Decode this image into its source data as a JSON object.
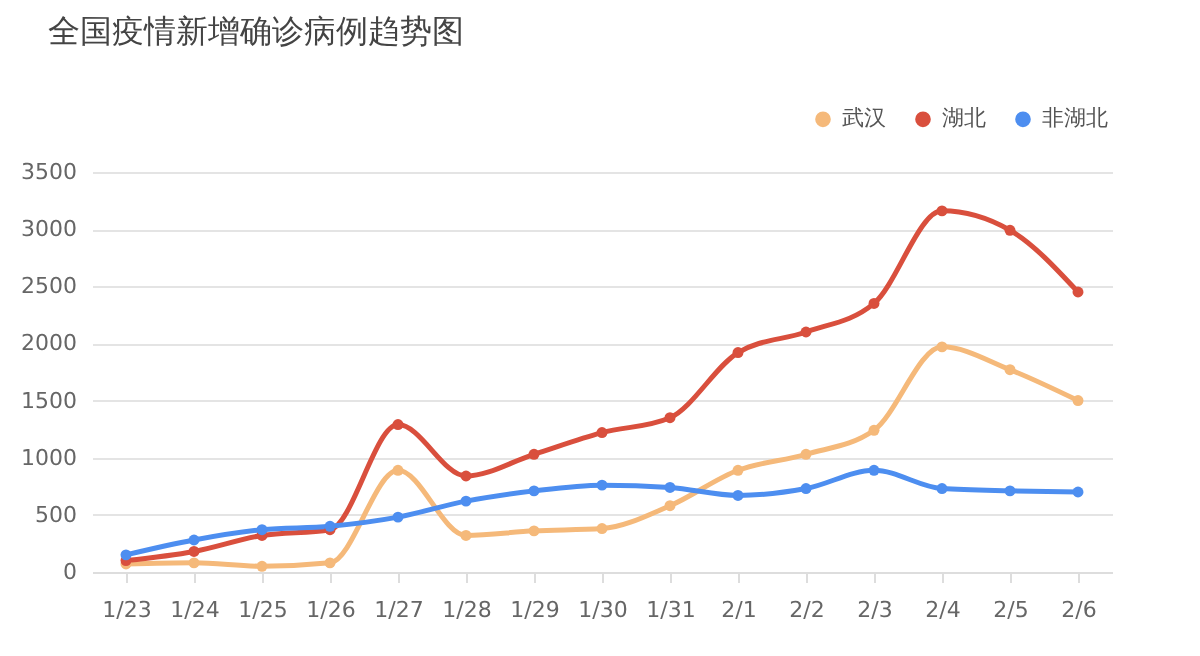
{
  "chart_data": {
    "type": "line",
    "title": "全国疫情新增确诊病例趋势图",
    "categories": [
      "1/23",
      "1/24",
      "1/25",
      "1/26",
      "1/27",
      "1/28",
      "1/29",
      "1/30",
      "1/31",
      "2/1",
      "2/2",
      "2/3",
      "2/4",
      "2/5",
      "2/6"
    ],
    "series": [
      {
        "name": "武汉",
        "color": "#f5b97a",
        "values": [
          70,
          80,
          50,
          80,
          890,
          320,
          360,
          380,
          580,
          890,
          1030,
          1240,
          1970,
          1770,
          1500
        ]
      },
      {
        "name": "湖北",
        "color": "#d94f3d",
        "values": [
          100,
          180,
          320,
          370,
          1290,
          840,
          1030,
          1220,
          1350,
          1920,
          2100,
          2350,
          3160,
          2990,
          2450
        ]
      },
      {
        "name": "非湖北",
        "color": "#4d8ef0",
        "values": [
          150,
          280,
          370,
          400,
          480,
          620,
          710,
          760,
          740,
          670,
          730,
          890,
          730,
          710,
          700
        ]
      }
    ],
    "ylim": [
      0,
      3500
    ],
    "yticks": [
      0,
      500,
      1000,
      1500,
      2000,
      2500,
      3000,
      3500
    ],
    "grid": "y",
    "legend": "top right",
    "marker": "circle",
    "line_style": "solid"
  }
}
